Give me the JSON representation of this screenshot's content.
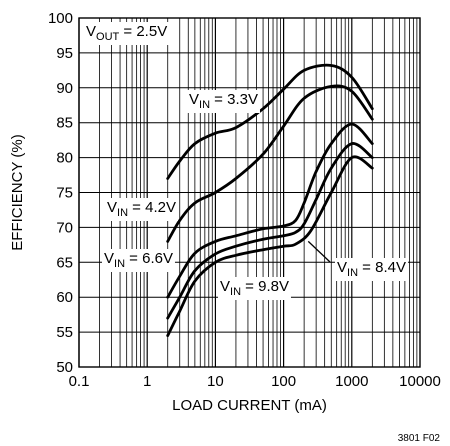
{
  "chart_data": {
    "type": "line",
    "xlabel": "LOAD CURRENT (mA)",
    "ylabel": "EFFICIENCY (%)",
    "xscale": "log",
    "xlim": [
      0.1,
      10000
    ],
    "ylim": [
      50,
      100
    ],
    "xticks": [
      "0.1",
      "1",
      "10",
      "100",
      "1000",
      "10000"
    ],
    "yticks": [
      "50",
      "55",
      "60",
      "65",
      "70",
      "75",
      "80",
      "85",
      "90",
      "95",
      "100"
    ],
    "grid": true,
    "colors": {
      "line": "#000000",
      "grid": "#000000",
      "background": "#ffffff"
    },
    "condition": {
      "prefix": "V",
      "sub": "OUT",
      "rest": " = 2.5V"
    },
    "series": [
      {
        "name_main": "V",
        "name_sub": "IN",
        "name_rest": " = 3.3V",
        "x": [
          2,
          3,
          5,
          10,
          20,
          50,
          100,
          200,
          500,
          1000,
          2000
        ],
        "y": [
          77,
          79.5,
          82,
          83.5,
          84.3,
          87,
          89.8,
          92.5,
          93.2,
          91.5,
          87
        ]
      },
      {
        "name_main": "V",
        "name_sub": "IN",
        "name_rest": " = 4.2V",
        "x": [
          2,
          3,
          5,
          10,
          20,
          50,
          100,
          200,
          500,
          1000,
          2000
        ],
        "y": [
          68,
          71,
          73.5,
          75,
          77,
          80.5,
          84.5,
          88.5,
          90.2,
          89.5,
          85.5
        ]
      },
      {
        "name_main": "V",
        "name_sub": "IN",
        "name_rest": " = 6.6V",
        "x": [
          2,
          3,
          5,
          10,
          20,
          50,
          100,
          150,
          200,
          300,
          500,
          1000,
          2000
        ],
        "y": [
          60,
          63,
          66.3,
          68,
          68.8,
          69.8,
          70.2,
          71,
          73.5,
          78,
          82,
          84.8,
          82
        ]
      },
      {
        "name_main": "V",
        "name_sub": "IN",
        "name_rest": " = 8.4V",
        "x": [
          2,
          3,
          5,
          10,
          20,
          50,
          100,
          150,
          200,
          300,
          500,
          1000,
          2000
        ],
        "y": [
          57,
          60,
          63.8,
          66.2,
          67.3,
          68.3,
          68.8,
          69.3,
          70.5,
          74,
          78.5,
          82,
          80
        ]
      },
      {
        "name_main": "V",
        "name_sub": "IN",
        "name_rest": " = 9.8V",
        "x": [
          2,
          3,
          5,
          10,
          20,
          50,
          100,
          150,
          250,
          500,
          1000,
          2000
        ],
        "y": [
          54.5,
          58,
          62.3,
          65,
          66,
          66.8,
          67.3,
          67.6,
          69.5,
          75,
          80,
          78.5
        ]
      }
    ]
  },
  "footer_code": "3801 F02"
}
